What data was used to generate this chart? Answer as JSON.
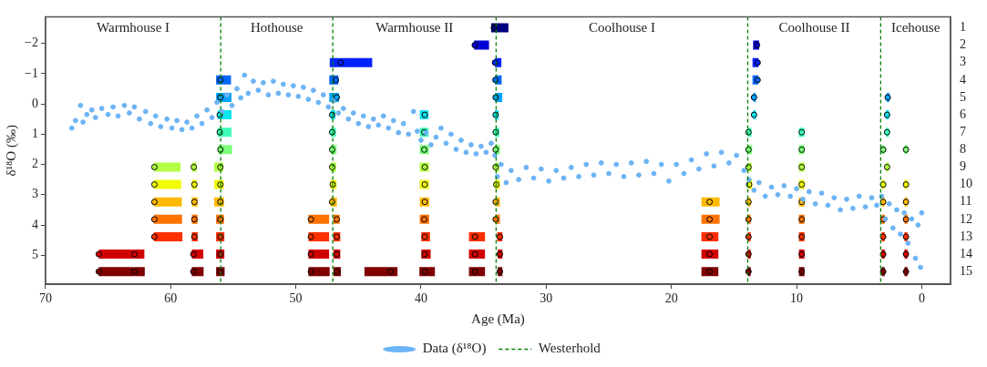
{
  "chart_data": {
    "type": "scatter",
    "xlabel": "Age (Ma)",
    "ylabel": "δ¹⁸O (‰)",
    "legend": "bottom",
    "marker": "circle",
    "xlim": [
      70,
      -2.3
    ],
    "xticks": [
      70,
      60,
      50,
      40,
      30,
      20,
      10,
      0
    ],
    "ylim": [
      5.96,
      -2.88
    ],
    "yticks": [
      {
        "value": -2,
        "label": "−2"
      },
      {
        "value": -1,
        "label": "−1"
      },
      0,
      1,
      2,
      3,
      4,
      5
    ],
    "y2lim": [
      15.73,
      0.37
    ],
    "y2ticks": [
      1,
      2,
      3,
      4,
      5,
      6,
      7,
      8,
      9,
      10,
      11,
      12,
      13,
      14,
      15
    ],
    "ref_lines": [
      {
        "axis": "x",
        "value": 56.0,
        "label": "Westerhold",
        "color": "#008000",
        "line_style": "dashed"
      },
      {
        "axis": "x",
        "value": 47.05,
        "color": "#008000",
        "line_style": "dashed"
      },
      {
        "axis": "x",
        "value": 34.0,
        "color": "#008000",
        "line_style": "dashed"
      },
      {
        "axis": "x",
        "value": 13.9,
        "color": "#008000",
        "line_style": "dashed"
      },
      {
        "axis": "x",
        "value": 3.28,
        "color": "#008000",
        "line_style": "dashed"
      }
    ],
    "annotations": [
      "Warmhouse I",
      "Hothouse",
      "Warmhouse II",
      "Coolhouse I",
      "Coolhouse II",
      "Icehouse"
    ],
    "series": [
      {
        "name": "Data (δ¹⁸O)",
        "type": "scatter",
        "color": "#6cb4f5",
        "x": [
          67.9,
          67.6,
          67.2,
          67.0,
          66.7,
          66.3,
          66.0,
          65.5,
          65.0,
          64.6,
          64.2,
          63.7,
          63.3,
          62.9,
          62.5,
          62.0,
          61.6,
          61.2,
          60.8,
          60.3,
          59.9,
          59.5,
          59.1,
          58.7,
          58.3,
          57.9,
          57.5,
          57.1,
          56.7,
          56.3,
          55.9,
          55.5,
          55.1,
          54.7,
          54.4,
          54.1,
          53.8,
          53.4,
          53.0,
          52.6,
          52.2,
          51.8,
          51.4,
          51.0,
          50.6,
          50.2,
          49.8,
          49.4,
          49.0,
          48.6,
          48.2,
          47.8,
          47.4,
          47.0,
          46.6,
          46.2,
          45.8,
          45.4,
          45.0,
          44.6,
          44.2,
          43.8,
          43.4,
          43.0,
          42.6,
          42.2,
          41.8,
          41.4,
          41.0,
          40.6,
          40.3,
          40.0,
          39.6,
          39.2,
          38.8,
          38.4,
          38.0,
          37.6,
          37.2,
          36.8,
          36.4,
          36.0,
          35.6,
          35.2,
          34.8,
          34.4,
          34.1,
          33.9,
          33.6,
          33.2,
          32.8,
          32.2,
          31.6,
          31.0,
          30.4,
          29.8,
          29.2,
          28.6,
          28.0,
          27.4,
          26.8,
          26.2,
          25.6,
          25.0,
          24.4,
          23.8,
          23.2,
          22.6,
          22.0,
          21.4,
          20.8,
          20.2,
          19.6,
          19.0,
          18.4,
          17.8,
          17.2,
          16.6,
          16.0,
          15.4,
          14.8,
          14.2,
          13.8,
          13.4,
          13.0,
          12.5,
          12.0,
          11.5,
          11.0,
          10.5,
          10.0,
          9.5,
          9.0,
          8.5,
          8.0,
          7.5,
          7.0,
          6.5,
          6.0,
          5.5,
          5.0,
          4.5,
          4.0,
          3.6,
          3.2,
          2.9,
          2.6,
          2.3,
          2.0,
          1.7,
          1.4,
          1.1,
          0.8,
          0.5,
          0.3,
          0.1,
          0.0
        ],
        "values": [
          0.8,
          0.55,
          0.05,
          0.6,
          0.35,
          0.2,
          0.45,
          0.15,
          0.35,
          0.1,
          0.4,
          0.05,
          0.3,
          0.1,
          0.5,
          0.25,
          0.65,
          0.4,
          0.75,
          0.5,
          0.8,
          0.55,
          0.85,
          0.6,
          0.8,
          0.4,
          0.65,
          0.2,
          0.45,
          -0.05,
          0.25,
          -0.3,
          0.05,
          -0.5,
          -0.2,
          -0.95,
          -0.35,
          -0.75,
          -0.45,
          -0.7,
          -0.3,
          -0.75,
          -0.35,
          -0.65,
          -0.3,
          -0.6,
          -0.25,
          -0.55,
          -0.15,
          -0.45,
          -0.05,
          -0.3,
          0.1,
          -0.1,
          0.3,
          0.15,
          0.5,
          0.3,
          0.65,
          0.4,
          0.75,
          0.5,
          0.7,
          0.4,
          0.8,
          0.55,
          0.95,
          0.65,
          1.0,
          0.25,
          0.9,
          1.2,
          0.95,
          1.35,
          1.1,
          0.8,
          1.3,
          1.0,
          1.5,
          1.2,
          1.6,
          1.35,
          1.65,
          1.4,
          1.6,
          1.3,
          1.7,
          2.4,
          2.0,
          2.6,
          2.2,
          2.5,
          2.1,
          2.45,
          2.15,
          2.55,
          2.2,
          2.45,
          2.1,
          2.4,
          2.0,
          2.35,
          1.95,
          2.3,
          2.0,
          2.4,
          1.95,
          2.35,
          1.9,
          2.3,
          2.0,
          2.55,
          2.0,
          2.3,
          1.85,
          2.15,
          1.65,
          2.05,
          1.6,
          1.95,
          1.7,
          2.2,
          2.5,
          2.85,
          2.6,
          3.05,
          2.75,
          3.0,
          2.7,
          3.05,
          2.8,
          3.15,
          2.9,
          3.3,
          2.95,
          3.35,
          3.1,
          3.5,
          3.15,
          3.45,
          3.05,
          3.4,
          3.1,
          3.35,
          3.05,
          3.8,
          3.3,
          4.1,
          3.5,
          4.3,
          3.6,
          4.6,
          3.8,
          5.1,
          4.0,
          5.4,
          3.6
        ]
      },
      {
        "type": "scatter",
        "axis": "y2",
        "color": "#00007f",
        "x": [
          34.18
        ],
        "values": [
          1
        ],
        "xerrors": [
          [
            33.02,
            34.4
          ]
        ]
      },
      {
        "type": "scatter",
        "axis": "y2",
        "color": "#0000d4",
        "x": [
          35.71,
          13.16
        ],
        "values": [
          2,
          2
        ],
        "xerrors": [
          [
            34.57,
            35.76
          ],
          [
            12.99,
            13.47
          ]
        ]
      },
      {
        "type": "scatter",
        "axis": "y2",
        "color": "#0022ff",
        "x": [
          46.42,
          34.09,
          13.11
        ],
        "values": [
          3,
          3,
          3
        ],
        "xerrors": [
          [
            43.9,
            47.29
          ],
          [
            33.58,
            34.09
          ],
          [
            13.04,
            13.52
          ]
        ]
      },
      {
        "type": "scatter",
        "axis": "y2",
        "color": "#0068ff",
        "x": [
          56.03,
          46.8,
          34.06,
          13.11
        ],
        "values": [
          4,
          4,
          4,
          4
        ],
        "xerrors": [
          [
            55.18,
            56.37
          ],
          [
            46.6,
            47.33
          ],
          [
            33.56,
            34.09
          ],
          [
            13.04,
            13.52
          ]
        ]
      },
      {
        "type": "scatter",
        "axis": "y2",
        "color": "#00a4ff",
        "x": [
          56.03,
          46.73,
          34.04,
          13.4,
          2.72
        ],
        "values": [
          5,
          5,
          5,
          5,
          5
        ],
        "xerrors": [
          [
            55.14,
            56.37
          ],
          [
            46.55,
            47.33
          ],
          [
            33.51,
            34.09
          ],
          [
            13.25,
            13.47
          ],
          [
            2.57,
            2.82
          ]
        ]
      },
      {
        "type": "scatter",
        "axis": "y2",
        "color": "#0ae5ee",
        "x": [
          56.08,
          47.1,
          39.7,
          34.04,
          13.4,
          2.77
        ],
        "values": [
          6,
          6,
          6,
          6,
          6,
          6
        ],
        "xerrors": [
          [
            55.14,
            56.25
          ],
          [
            46.85,
            47.22
          ],
          [
            39.4,
            40.1
          ],
          [
            33.8,
            34.09
          ],
          [
            13.25,
            13.47
          ],
          [
            2.62,
            2.87
          ]
        ]
      },
      {
        "type": "scatter",
        "axis": "y2",
        "color": "#3dffba",
        "x": [
          56.08,
          47.1,
          39.74,
          34.04,
          13.84,
          9.59,
          2.77
        ],
        "values": [
          7,
          7,
          7,
          7,
          7,
          7,
          7
        ],
        "xerrors": [
          [
            55.14,
            56.25
          ],
          [
            46.8,
            47.22
          ],
          [
            39.4,
            40.1
          ],
          [
            33.75,
            34.09
          ],
          [
            13.6,
            13.89
          ],
          [
            9.37,
            9.81
          ],
          [
            2.62,
            2.87
          ]
        ]
      },
      {
        "type": "scatter",
        "axis": "y2",
        "color": "#7dff7a",
        "x": [
          56.03,
          47.1,
          39.74,
          34.04,
          13.84,
          9.59,
          3.08,
          1.26
        ],
        "values": [
          8,
          8,
          8,
          8,
          8,
          8,
          8,
          8
        ],
        "xerrors": [
          [
            55.1,
            56.2
          ],
          [
            46.75,
            47.22
          ],
          [
            39.37,
            40.1
          ],
          [
            33.7,
            34.09
          ],
          [
            13.55,
            13.89
          ],
          [
            9.37,
            9.81
          ],
          [
            2.96,
            3.2
          ],
          [
            1.14,
            1.38
          ]
        ]
      },
      {
        "type": "scatter",
        "axis": "y2",
        "color": "#b3ff43",
        "x": [
          61.3,
          58.15,
          56.03,
          47.1,
          39.7,
          34.04,
          13.84,
          9.59,
          2.77
        ],
        "values": [
          9,
          9,
          9,
          9,
          9,
          9,
          9,
          9,
          9
        ],
        "xerrors": [
          [
            59.21,
            61.35
          ],
          [
            57.93,
            58.31
          ],
          [
            55.79,
            56.52
          ],
          [
            46.78,
            47.22
          ],
          [
            39.37,
            40.1
          ],
          [
            33.75,
            34.09
          ],
          [
            13.6,
            13.89
          ],
          [
            9.37,
            9.81
          ],
          [
            2.62,
            2.87
          ]
        ]
      },
      {
        "type": "scatter",
        "axis": "y2",
        "color": "#f1fc06",
        "x": [
          61.3,
          58.1,
          56.03,
          47.05,
          39.7,
          33.99,
          13.79,
          9.59,
          3.08,
          1.26
        ],
        "values": [
          10,
          10,
          10,
          10,
          10,
          10,
          10,
          10,
          10,
          10
        ],
        "xerrors": [
          [
            59.16,
            61.35
          ],
          [
            57.9,
            58.31
          ],
          [
            55.76,
            56.52
          ],
          [
            46.75,
            47.22
          ],
          [
            39.37,
            40.1
          ],
          [
            33.7,
            34.09
          ],
          [
            13.55,
            13.89
          ],
          [
            9.37,
            9.81
          ],
          [
            2.96,
            3.2
          ],
          [
            1.14,
            1.38
          ]
        ]
      },
      {
        "type": "scatter",
        "axis": "y2",
        "color": "#ffb900",
        "x": [
          61.3,
          58.1,
          56.03,
          47.1,
          39.7,
          34.04,
          16.95,
          13.84,
          9.59,
          3.08,
          1.26
        ],
        "values": [
          11,
          11,
          11,
          11,
          11,
          11,
          11,
          11,
          11,
          11,
          11
        ],
        "xerrors": [
          [
            59.11,
            61.35
          ],
          [
            57.85,
            58.31
          ],
          [
            55.74,
            56.52
          ],
          [
            46.72,
            47.22
          ],
          [
            39.35,
            40.1
          ],
          [
            33.7,
            34.09
          ],
          [
            16.15,
            17.6
          ],
          [
            13.67,
            13.89
          ],
          [
            9.37,
            9.81
          ],
          [
            2.96,
            3.2
          ],
          [
            1.14,
            1.38
          ]
        ]
      },
      {
        "type": "scatter",
        "axis": "y2",
        "color": "#ff7300",
        "x": [
          61.3,
          58.1,
          56.03,
          48.8,
          46.73,
          39.74,
          34.04,
          16.95,
          13.84,
          9.59,
          3.08,
          1.26
        ],
        "values": [
          12,
          12,
          12,
          12,
          12,
          12,
          12,
          12,
          12,
          12,
          12,
          12
        ],
        "xerrors": [
          [
            59.09,
            61.35
          ],
          [
            57.85,
            58.31
          ],
          [
            55.74,
            56.37
          ],
          [
            47.34,
            48.99
          ],
          [
            46.5,
            47.0
          ],
          [
            39.35,
            40.1
          ],
          [
            33.7,
            34.09
          ],
          [
            16.15,
            17.6
          ],
          [
            13.67,
            13.89
          ],
          [
            9.37,
            9.81
          ],
          [
            2.96,
            3.2
          ],
          [
            1.14,
            1.38
          ]
        ]
      },
      {
        "type": "scatter",
        "axis": "y2",
        "color": "#ff3000",
        "x": [
          61.3,
          58.1,
          56.03,
          48.8,
          46.73,
          39.7,
          35.69,
          33.7,
          16.95,
          13.84,
          9.59,
          3.08,
          1.26
        ],
        "values": [
          13,
          13,
          13,
          13,
          13,
          13,
          13,
          13,
          13,
          13,
          13,
          13,
          13
        ],
        "xerrors": [
          [
            59.06,
            61.35
          ],
          [
            57.83,
            58.31
          ],
          [
            55.71,
            56.37
          ],
          [
            47.34,
            48.99
          ],
          [
            46.45,
            47.0
          ],
          [
            39.28,
            39.98
          ],
          [
            34.89,
            36.17
          ],
          [
            33.5,
            33.92
          ],
          [
            16.25,
            17.6
          ],
          [
            13.67,
            13.89
          ],
          [
            9.37,
            9.81
          ],
          [
            2.96,
            3.2
          ],
          [
            1.14,
            1.38
          ]
        ]
      },
      {
        "type": "scatter",
        "axis": "y2",
        "color": "#d10000",
        "x": [
          65.74,
          62.88,
          58.19,
          56.03,
          48.8,
          46.73,
          39.7,
          35.69,
          33.7,
          16.95,
          13.84,
          9.59,
          3.08,
          1.26
        ],
        "values": [
          14,
          14,
          14,
          14,
          14,
          14,
          14,
          14,
          14,
          14,
          14,
          14,
          14,
          14
        ],
        "xerrors": [
          [
            62.88,
            65.74
          ],
          [
            62.1,
            62.88
          ],
          [
            57.39,
            58.31
          ],
          [
            55.71,
            56.37
          ],
          [
            47.34,
            48.99
          ],
          [
            46.45,
            47.0
          ],
          [
            39.23,
            39.98
          ],
          [
            34.89,
            36.17
          ],
          [
            33.5,
            33.87
          ],
          [
            16.25,
            17.6
          ],
          [
            13.67,
            13.89
          ],
          [
            9.37,
            9.81
          ],
          [
            2.96,
            3.2
          ],
          [
            1.14,
            1.38
          ]
        ]
      },
      {
        "type": "scatter",
        "axis": "y2",
        "color": "#800000",
        "x": [
          65.74,
          62.88,
          58.19,
          56.03,
          48.8,
          46.73,
          42.41,
          39.7,
          35.69,
          33.7,
          16.95,
          13.84,
          9.59,
          3.08,
          1.26
        ],
        "values": [
          15,
          15,
          15,
          15,
          15,
          15,
          15,
          15,
          15,
          15,
          15,
          15,
          15,
          15,
          15
        ],
        "xerrors": [
          [
            62.88,
            65.74
          ],
          [
            62.07,
            62.88
          ],
          [
            57.37,
            58.31
          ],
          [
            55.69,
            56.37
          ],
          [
            47.3,
            48.99
          ],
          [
            46.4,
            47.0
          ],
          [
            41.88,
            44.52
          ],
          [
            38.89,
            40.13
          ],
          [
            34.89,
            36.17
          ],
          [
            33.5,
            33.87
          ],
          [
            16.25,
            17.6
          ],
          [
            13.67,
            13.89
          ],
          [
            9.37,
            9.81
          ],
          [
            2.96,
            3.2
          ],
          [
            1.14,
            1.38
          ]
        ]
      }
    ]
  }
}
